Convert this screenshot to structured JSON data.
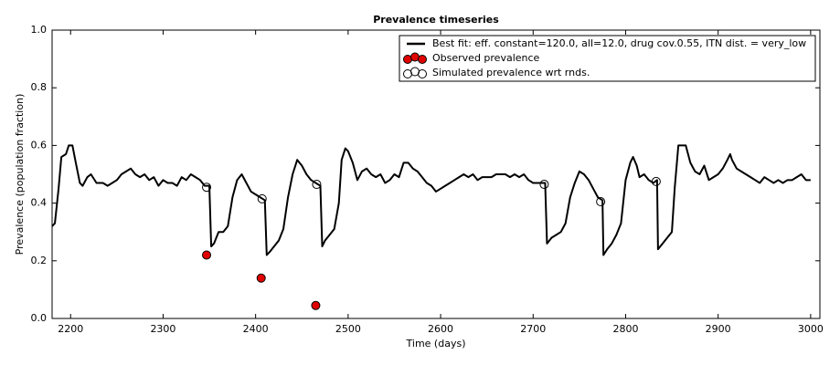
{
  "chart_data": {
    "type": "line",
    "title": "Prevalence timeseries",
    "x_label": "Time (days)",
    "y_label": "Prevalence (population fraction)",
    "xlim": [
      2180,
      3010
    ],
    "ylim": [
      0,
      1
    ],
    "xticks": [
      2200,
      2300,
      2400,
      2500,
      2600,
      2700,
      2800,
      2900,
      3000
    ],
    "yticks": [
      {
        "value": 0,
        "label": "0.0"
      },
      0.2,
      0.4,
      0.6,
      0.8,
      {
        "value": 1,
        "label": "1.0"
      }
    ],
    "grid": false,
    "legend": "upper right",
    "series": [
      {
        "name": "Best fit: eff. constant=120.0, all=12.0, drug cov.0.55, ITN dist. = very_low",
        "color": "#000000",
        "style": "line",
        "x": [
          2180,
          2183,
          2187,
          2190,
          2195,
          2198,
          2202,
          2205,
          2210,
          2213,
          2218,
          2222,
          2228,
          2235,
          2240,
          2245,
          2250,
          2255,
          2260,
          2265,
          2270,
          2275,
          2280,
          2285,
          2290,
          2295,
          2300,
          2305,
          2310,
          2315,
          2320,
          2325,
          2330,
          2335,
          2340,
          2345,
          2350,
          2352,
          2355,
          2360,
          2365,
          2370,
          2375,
          2380,
          2385,
          2390,
          2395,
          2400,
          2405,
          2410,
          2412,
          2415,
          2420,
          2425,
          2430,
          2435,
          2440,
          2445,
          2450,
          2455,
          2460,
          2465,
          2470,
          2472,
          2475,
          2480,
          2485,
          2490,
          2493,
          2497,
          2500,
          2505,
          2510,
          2515,
          2520,
          2525,
          2530,
          2535,
          2540,
          2545,
          2550,
          2555,
          2560,
          2565,
          2570,
          2575,
          2580,
          2585,
          2590,
          2595,
          2600,
          2605,
          2610,
          2615,
          2620,
          2625,
          2630,
          2635,
          2640,
          2645,
          2650,
          2655,
          2660,
          2665,
          2670,
          2675,
          2680,
          2685,
          2690,
          2695,
          2700,
          2705,
          2710,
          2713,
          2715,
          2720,
          2725,
          2730,
          2735,
          2740,
          2745,
          2750,
          2755,
          2760,
          2765,
          2770,
          2775,
          2776,
          2780,
          2785,
          2790,
          2795,
          2800,
          2805,
          2808,
          2812,
          2815,
          2820,
          2825,
          2830,
          2834,
          2835,
          2840,
          2845,
          2850,
          2853,
          2857,
          2862,
          2865,
          2870,
          2875,
          2880,
          2885,
          2890,
          2895,
          2900,
          2905,
          2910,
          2913,
          2915,
          2920,
          2925,
          2930,
          2935,
          2940,
          2945,
          2950,
          2955,
          2960,
          2965,
          2970,
          2975,
          2980,
          2985,
          2990,
          2995,
          3000
        ],
        "values": [
          0.32,
          0.33,
          0.45,
          0.56,
          0.57,
          0.6,
          0.6,
          0.55,
          0.47,
          0.46,
          0.49,
          0.5,
          0.47,
          0.47,
          0.46,
          0.47,
          0.48,
          0.5,
          0.51,
          0.52,
          0.5,
          0.49,
          0.5,
          0.48,
          0.49,
          0.46,
          0.48,
          0.47,
          0.47,
          0.46,
          0.49,
          0.48,
          0.5,
          0.49,
          0.48,
          0.46,
          0.46,
          0.25,
          0.26,
          0.3,
          0.3,
          0.32,
          0.42,
          0.48,
          0.5,
          0.47,
          0.44,
          0.43,
          0.42,
          0.41,
          0.22,
          0.23,
          0.25,
          0.27,
          0.31,
          0.42,
          0.5,
          0.55,
          0.53,
          0.5,
          0.48,
          0.47,
          0.46,
          0.25,
          0.27,
          0.29,
          0.31,
          0.4,
          0.55,
          0.59,
          0.58,
          0.54,
          0.48,
          0.51,
          0.52,
          0.5,
          0.49,
          0.5,
          0.47,
          0.48,
          0.5,
          0.49,
          0.54,
          0.54,
          0.52,
          0.51,
          0.49,
          0.47,
          0.46,
          0.44,
          0.45,
          0.46,
          0.47,
          0.48,
          0.49,
          0.5,
          0.49,
          0.5,
          0.48,
          0.49,
          0.49,
          0.49,
          0.5,
          0.5,
          0.5,
          0.49,
          0.5,
          0.49,
          0.5,
          0.48,
          0.47,
          0.47,
          0.47,
          0.47,
          0.26,
          0.28,
          0.29,
          0.3,
          0.33,
          0.42,
          0.47,
          0.51,
          0.5,
          0.48,
          0.45,
          0.42,
          0.41,
          0.22,
          0.24,
          0.26,
          0.29,
          0.33,
          0.48,
          0.54,
          0.56,
          0.53,
          0.49,
          0.5,
          0.48,
          0.47,
          0.48,
          0.24,
          0.26,
          0.28,
          0.3,
          0.45,
          0.6,
          0.6,
          0.6,
          0.54,
          0.51,
          0.5,
          0.53,
          0.48,
          0.49,
          0.5,
          0.52,
          0.55,
          0.57,
          0.55,
          0.52,
          0.51,
          0.5,
          0.49,
          0.48,
          0.47,
          0.49,
          0.48,
          0.47,
          0.48,
          0.47,
          0.48,
          0.48,
          0.49,
          0.5,
          0.48,
          0.48
        ]
      },
      {
        "name": "Observed prevalence",
        "color": "#000000",
        "marker_fill": "#e00000",
        "style": "marker",
        "x": [
          2347,
          2406,
          2465
        ],
        "values": [
          0.22,
          0.14,
          0.045
        ]
      },
      {
        "name": "Simulated prevalence wrt rnds.",
        "color": "#000000",
        "marker_fill": "none",
        "style": "marker",
        "x": [
          2347,
          2407,
          2466,
          2712,
          2773,
          2833
        ],
        "values": [
          0.455,
          0.415,
          0.465,
          0.465,
          0.405,
          0.475
        ]
      }
    ]
  }
}
